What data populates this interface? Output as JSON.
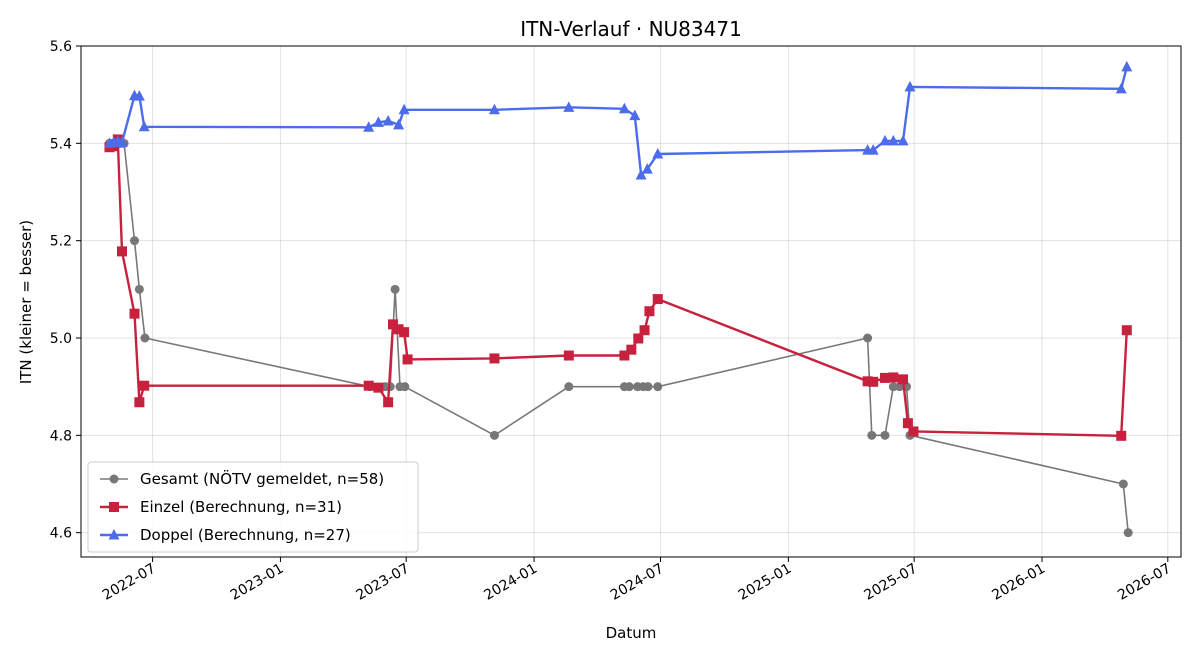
{
  "chart_data": {
    "type": "line",
    "title": "ITN-Verlauf · NU83471",
    "xlabel": "Datum",
    "ylabel": "ITN  (kleiner = besser)",
    "x_type": "date",
    "xlim": [
      "2022-03-20",
      "2026-07-20"
    ],
    "ylim": [
      4.55,
      5.6
    ],
    "y_ticks": [
      4.6,
      4.8,
      5.0,
      5.2,
      5.4,
      5.6
    ],
    "y_tick_labels": [
      "4.6",
      "4.8",
      "5.0",
      "5.2",
      "5.4",
      "5.6"
    ],
    "x_ticks": [
      "2022-07-01",
      "2023-01-01",
      "2023-07-01",
      "2024-01-01",
      "2024-07-01",
      "2025-01-01",
      "2025-07-01",
      "2026-01-01",
      "2026-07-01"
    ],
    "x_tick_labels": [
      "2022-07",
      "2023-01",
      "2023-07",
      "2024-01",
      "2024-07",
      "2025-01",
      "2025-07",
      "2026-01",
      "2026-07"
    ],
    "grid": true,
    "legend_position": "lower-left",
    "series": [
      {
        "name": "Gesamt (NÖTV gemeldet, n=58)",
        "color": "#404040",
        "marker": "circle",
        "points": [
          [
            "2022-04-30",
            5.4
          ],
          [
            "2022-05-03",
            5.4
          ],
          [
            "2022-05-06",
            5.4
          ],
          [
            "2022-05-09",
            5.4
          ],
          [
            "2022-05-12",
            5.4
          ],
          [
            "2022-05-15",
            5.4
          ],
          [
            "2022-05-18",
            5.4
          ],
          [
            "2022-05-21",
            5.4
          ],
          [
            "2022-06-05",
            5.2
          ],
          [
            "2022-06-12",
            5.1
          ],
          [
            "2022-06-20",
            5.0
          ],
          [
            "2023-05-10",
            4.9
          ],
          [
            "2023-06-01",
            4.9
          ],
          [
            "2023-06-08",
            4.9
          ],
          [
            "2023-06-15",
            5.1
          ],
          [
            "2023-06-22",
            4.9
          ],
          [
            "2023-06-29",
            4.9
          ],
          [
            "2023-11-05",
            4.8
          ],
          [
            "2024-02-20",
            4.9
          ],
          [
            "2024-05-10",
            4.9
          ],
          [
            "2024-05-17",
            4.9
          ],
          [
            "2024-05-29",
            4.9
          ],
          [
            "2024-06-06",
            4.9
          ],
          [
            "2024-06-13",
            4.9
          ],
          [
            "2024-06-27",
            4.9
          ],
          [
            "2025-04-25",
            5.0
          ],
          [
            "2025-05-01",
            4.8
          ],
          [
            "2025-05-20",
            4.8
          ],
          [
            "2025-06-01",
            4.9
          ],
          [
            "2025-06-10",
            4.9
          ],
          [
            "2025-06-20",
            4.9
          ],
          [
            "2025-06-25",
            4.8
          ],
          [
            "2026-04-28",
            4.7
          ],
          [
            "2026-05-05",
            4.6
          ]
        ]
      },
      {
        "name": "Einzel (Berechnung, n=31)",
        "color": "#c8213d",
        "marker": "square",
        "points": [
          [
            "2022-04-30",
            5.392
          ],
          [
            "2022-05-06",
            5.394
          ],
          [
            "2022-05-12",
            5.408
          ],
          [
            "2022-05-18",
            5.178
          ],
          [
            "2022-06-05",
            5.05
          ],
          [
            "2022-06-12",
            4.868
          ],
          [
            "2022-06-19",
            4.902
          ],
          [
            "2023-05-08",
            4.902
          ],
          [
            "2023-05-22",
            4.898
          ],
          [
            "2023-06-05",
            4.868
          ],
          [
            "2023-06-12",
            5.028
          ],
          [
            "2023-06-20",
            5.018
          ],
          [
            "2023-06-28",
            5.012
          ],
          [
            "2023-07-03",
            4.956
          ],
          [
            "2023-11-05",
            4.958
          ],
          [
            "2024-02-20",
            4.964
          ],
          [
            "2024-05-10",
            4.964
          ],
          [
            "2024-05-20",
            4.976
          ],
          [
            "2024-05-30",
            4.999
          ],
          [
            "2024-06-08",
            5.016
          ],
          [
            "2024-06-15",
            5.055
          ],
          [
            "2024-06-27",
            5.08
          ],
          [
            "2025-04-25",
            4.911
          ],
          [
            "2025-05-03",
            4.91
          ],
          [
            "2025-05-20",
            4.918
          ],
          [
            "2025-06-01",
            4.919
          ],
          [
            "2025-06-15",
            4.915
          ],
          [
            "2025-06-22",
            4.825
          ],
          [
            "2025-06-30",
            4.808
          ],
          [
            "2026-04-25",
            4.799
          ],
          [
            "2026-05-03",
            5.016
          ]
        ]
      },
      {
        "name": "Doppel (Berechnung, n=27)",
        "color": "#4d6ceb",
        "marker": "triangle",
        "points": [
          [
            "2022-04-30",
            5.4
          ],
          [
            "2022-05-06",
            5.402
          ],
          [
            "2022-05-12",
            5.404
          ],
          [
            "2022-05-18",
            5.402
          ],
          [
            "2022-06-05",
            5.498
          ],
          [
            "2022-06-12",
            5.497
          ],
          [
            "2022-06-19",
            5.434
          ],
          [
            "2023-05-08",
            5.433
          ],
          [
            "2023-05-22",
            5.443
          ],
          [
            "2023-06-05",
            5.446
          ],
          [
            "2023-06-20",
            5.438
          ],
          [
            "2023-06-28",
            5.469
          ],
          [
            "2023-11-05",
            5.469
          ],
          [
            "2024-02-20",
            5.474
          ],
          [
            "2024-05-10",
            5.471
          ],
          [
            "2024-05-25",
            5.457
          ],
          [
            "2024-06-03",
            5.335
          ],
          [
            "2024-06-12",
            5.347
          ],
          [
            "2024-06-27",
            5.378
          ],
          [
            "2025-04-25",
            5.386
          ],
          [
            "2025-05-03",
            5.386
          ],
          [
            "2025-05-20",
            5.405
          ],
          [
            "2025-06-01",
            5.405
          ],
          [
            "2025-06-15",
            5.405
          ],
          [
            "2025-06-25",
            5.516
          ],
          [
            "2026-04-25",
            5.512
          ],
          [
            "2026-05-03",
            5.557
          ]
        ]
      }
    ]
  }
}
